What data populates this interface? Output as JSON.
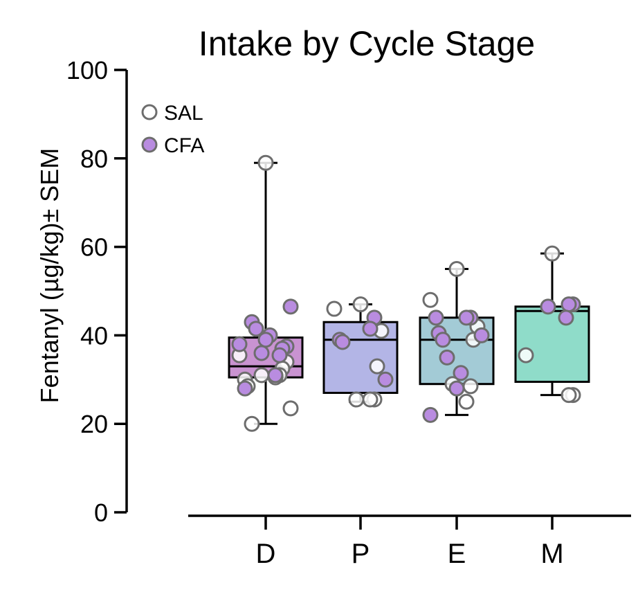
{
  "chart_data": {
    "type": "box",
    "title": "Intake by Cycle Stage",
    "xlabel": "",
    "ylabel": "Fentanyl (µg/kg)± SEM",
    "ylim": [
      0,
      100
    ],
    "yticks": [
      0,
      20,
      40,
      60,
      80,
      100
    ],
    "categories": [
      "D",
      "P",
      "E",
      "M"
    ],
    "colors": {
      "D": "#c993d1",
      "P": "#b3b5e6",
      "E": "#a3cbd6",
      "M": "#8fdcc9",
      "sal_marker_edge": "#6d6d6d",
      "sal_marker_fill": "#ffffff",
      "cfa_marker_fill": "#b98ce0"
    },
    "legend": {
      "placement": "top-left",
      "entries": [
        {
          "name": "SAL",
          "marker": "open-circle"
        },
        {
          "name": "CFA",
          "marker": "filled-circle"
        }
      ]
    },
    "boxes": [
      {
        "category": "D",
        "whisker_low": 20,
        "q1": 30.5,
        "median": 33,
        "q3": 39.5,
        "whisker_high": 79
      },
      {
        "category": "P",
        "whisker_low": 25,
        "q1": 27,
        "median": 39,
        "q3": 43,
        "whisker_high": 47
      },
      {
        "category": "E",
        "whisker_low": 22,
        "q1": 29,
        "median": 39,
        "q3": 44,
        "whisker_high": 55
      },
      {
        "category": "M",
        "whisker_low": 26.5,
        "q1": 29.5,
        "median": 45.5,
        "q3": 46.5,
        "whisker_high": 58.5
      }
    ],
    "points": {
      "D": {
        "SAL": [
          79,
          35.5,
          34,
          32.5,
          31,
          31,
          30.5,
          30,
          28.5,
          23.5,
          20
        ],
        "CFA": [
          46.5,
          43,
          41.5,
          40,
          39,
          38,
          37.5,
          37,
          36,
          35.5,
          31,
          28
        ]
      },
      "P": {
        "SAL": [
          47,
          46,
          41,
          33,
          25.5,
          25.5,
          25.5
        ],
        "CFA": [
          44,
          41.5,
          39,
          38.5,
          30
        ]
      },
      "E": {
        "SAL": [
          55,
          48,
          42,
          39,
          29,
          28.5,
          25
        ],
        "CFA": [
          44,
          44,
          44,
          40.5,
          40,
          39,
          35,
          31.5,
          28,
          22
        ]
      },
      "M": {
        "SAL": [
          58.5,
          35.5,
          26.5,
          26.5
        ],
        "CFA": [
          47,
          47,
          46.5,
          44
        ]
      }
    }
  }
}
